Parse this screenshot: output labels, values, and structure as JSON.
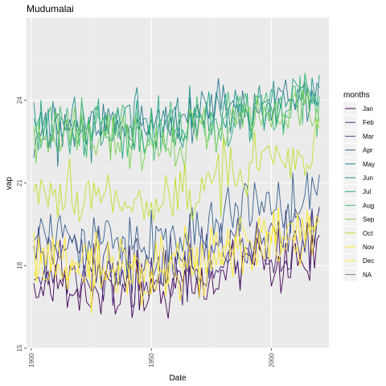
{
  "chart_data": {
    "type": "line",
    "title": "Mudumalai",
    "xlabel": "Date",
    "ylabel": "vap",
    "xlim": [
      1898,
      2024
    ],
    "ylim": [
      15,
      27
    ],
    "x_ticks": [
      1900,
      1950,
      2000
    ],
    "y_ticks": [
      15,
      18,
      21,
      24
    ],
    "legend_title": "months",
    "legend_position": "right",
    "grid": true,
    "x_start": 1901,
    "x_end": 2020,
    "series": [
      {
        "name": "Jan",
        "color": "#440154",
        "base": [
          17.3,
          17.0,
          16.8,
          17.3,
          18.3,
          18.2
        ]
      },
      {
        "name": "Feb",
        "color": "#482576",
        "base": [
          17.9,
          17.6,
          17.4,
          17.8,
          18.6,
          18.8
        ]
      },
      {
        "name": "Mar",
        "color": "#414487",
        "base": [
          18.5,
          18.3,
          18.1,
          18.6,
          19.3,
          19.6
        ]
      },
      {
        "name": "Apr",
        "color": "#35608D",
        "base": [
          19.2,
          19.0,
          18.8,
          19.2,
          20.1,
          20.4
        ]
      },
      {
        "name": "May",
        "color": "#2A788E",
        "base": [
          22.7,
          23.0,
          23.0,
          23.3,
          24.0,
          24.3
        ]
      },
      {
        "name": "Jun",
        "color": "#21908C",
        "base": [
          23.0,
          23.3,
          23.3,
          23.4,
          24.1,
          24.4
        ]
      },
      {
        "name": "Jul",
        "color": "#22A884",
        "base": [
          22.9,
          23.1,
          23.1,
          23.2,
          23.9,
          24.2
        ]
      },
      {
        "name": "Aug",
        "color": "#43BF71",
        "base": [
          22.8,
          23.0,
          22.9,
          23.1,
          23.8,
          24.0
        ]
      },
      {
        "name": "Sep",
        "color": "#7AD151",
        "base": [
          22.5,
          22.7,
          22.6,
          22.8,
          23.5,
          23.8
        ]
      },
      {
        "name": "Oct",
        "color": "#BBDF27",
        "base": [
          20.6,
          20.5,
          20.3,
          20.8,
          21.8,
          22.1
        ]
      },
      {
        "name": "Nov",
        "color": "#FDE725",
        "base": [
          18.2,
          18.0,
          17.9,
          18.3,
          19.2,
          19.5
        ]
      },
      {
        "name": "Dec",
        "color": "#FDE725",
        "base": [
          17.9,
          17.8,
          17.5,
          18.0,
          18.8,
          19.1
        ]
      },
      {
        "name": "NA",
        "color": "#7F7F7F",
        "base": []
      }
    ]
  }
}
